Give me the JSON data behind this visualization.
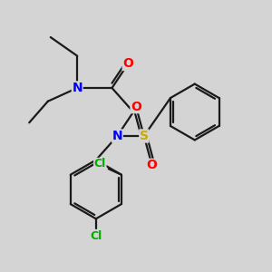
{
  "bg_color": "#d4d4d4",
  "bond_color": "#1a1a1a",
  "N_color": "#0000ff",
  "O_color": "#ff0000",
  "S_color": "#ccaa00",
  "Cl_color": "#00aa00",
  "bond_width": 1.6,
  "figsize": [
    3.0,
    3.0
  ],
  "dpi": 100,
  "xlim": [
    0,
    10
  ],
  "ylim": [
    0,
    10
  ]
}
